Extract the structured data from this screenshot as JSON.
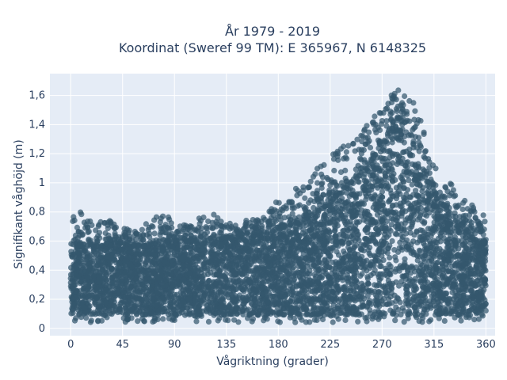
{
  "chart_data": {
    "type": "scatter",
    "title_line1": "År 1979 - 2019",
    "title_line2": "Koordinat (Sweref 99 TM): E 365967, N 6148325",
    "xlabel": "Vågriktning (grader)",
    "ylabel": "Signifikant våghöjd (m)",
    "xlim": [
      -18,
      368
    ],
    "ylim": [
      -0.05,
      1.75
    ],
    "xticks": [
      0,
      45,
      90,
      135,
      180,
      225,
      270,
      315,
      360
    ],
    "xtick_labels": [
      "0",
      "45",
      "90",
      "135",
      "180",
      "225",
      "270",
      "315",
      "360"
    ],
    "yticks": [
      0,
      0.2,
      0.4,
      0.6,
      0.8,
      1.0,
      1.2,
      1.4,
      1.6
    ],
    "ytick_labels": [
      "0",
      "0,2",
      "0,4",
      "0,6",
      "0,8",
      "1",
      "1,2",
      "1,4",
      "1,6"
    ],
    "grid": true,
    "marker_color": "#34576e",
    "background_color": "#e5ecf6",
    "envelope": {
      "x": [
        0,
        10,
        20,
        30,
        45,
        60,
        75,
        90,
        105,
        120,
        135,
        150,
        165,
        180,
        195,
        210,
        225,
        240,
        250,
        260,
        270,
        280,
        285,
        290,
        300,
        310,
        320,
        330,
        340,
        350,
        360
      ],
      "y_low": [
        0.1,
        0.09,
        0.09,
        0.09,
        0.09,
        0.09,
        0.09,
        0.09,
        0.09,
        0.09,
        0.09,
        0.09,
        0.09,
        0.09,
        0.09,
        0.09,
        0.09,
        0.09,
        0.09,
        0.09,
        0.09,
        0.09,
        0.09,
        0.09,
        0.09,
        0.09,
        0.09,
        0.09,
        0.09,
        0.09,
        0.12
      ],
      "y_dense_top": [
        0.52,
        0.58,
        0.56,
        0.56,
        0.58,
        0.56,
        0.58,
        0.6,
        0.6,
        0.6,
        0.62,
        0.64,
        0.64,
        0.68,
        0.72,
        0.78,
        0.86,
        0.98,
        1.06,
        1.14,
        1.26,
        1.38,
        1.42,
        1.38,
        1.2,
        1.0,
        0.86,
        0.78,
        0.68,
        0.6,
        0.58
      ],
      "y_outlier_top": [
        0.78,
        0.82,
        0.74,
        0.76,
        0.7,
        0.66,
        0.82,
        0.74,
        0.7,
        0.84,
        0.72,
        0.74,
        0.76,
        0.9,
        0.98,
        1.08,
        1.18,
        1.3,
        1.36,
        1.42,
        1.56,
        1.68,
        1.66,
        1.64,
        1.56,
        1.22,
        1.08,
        1.02,
        0.9,
        0.84,
        0.82
      ]
    }
  }
}
